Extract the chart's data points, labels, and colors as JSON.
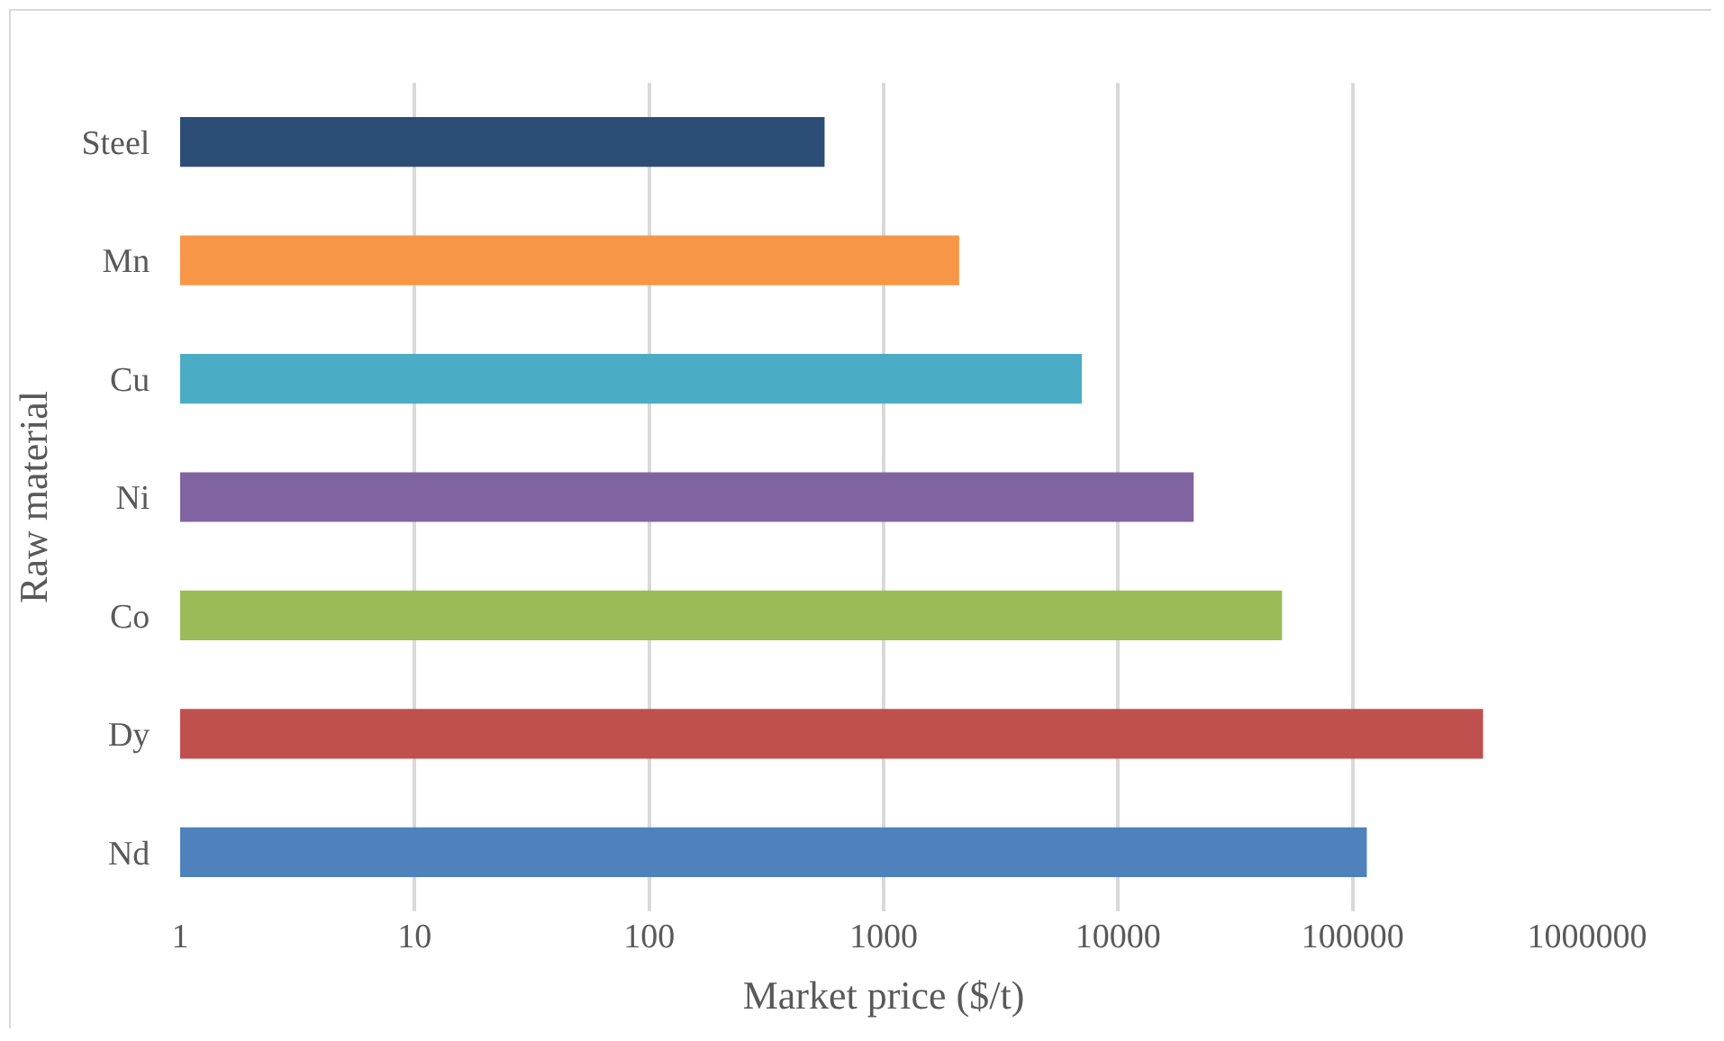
{
  "chart_data": {
    "type": "bar",
    "orientation": "horizontal",
    "xlabel": "Market price ($/t)",
    "ylabel": "Raw material",
    "categories": [
      "Steel",
      "Mn",
      "Cu",
      "Ni",
      "Co",
      "Dy",
      "Nd"
    ],
    "values": [
      560,
      2100,
      7000,
      21000,
      50000,
      360000,
      115000
    ],
    "colors": [
      "#2c4d75",
      "#f79646",
      "#4bacc6",
      "#8064a2",
      "#9bbb59",
      "#c0504d",
      "#4f81bd"
    ],
    "log": "x",
    "xlim": [
      1,
      1000000
    ],
    "xticks": [
      1,
      10,
      100,
      1000,
      10000,
      100000,
      1000000
    ],
    "grid": "x"
  }
}
